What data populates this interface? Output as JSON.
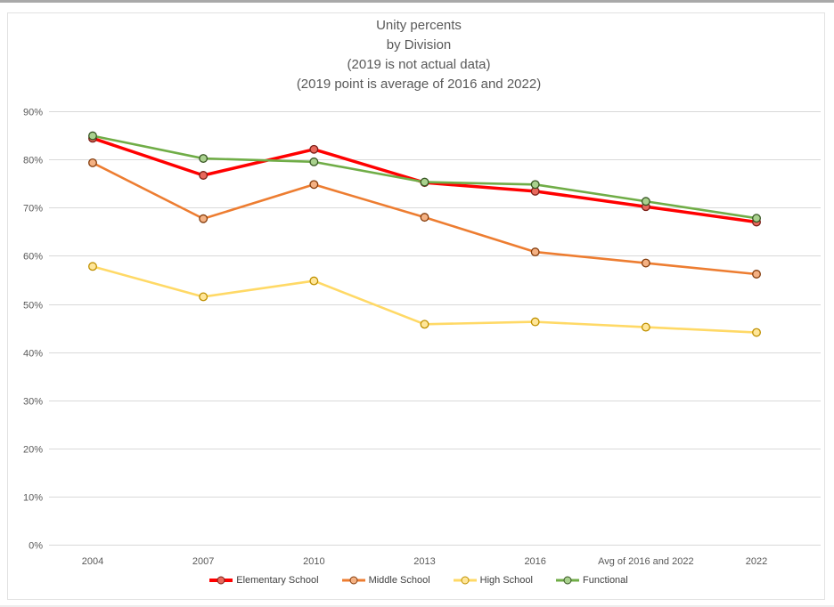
{
  "page": {
    "background": "#ffffff",
    "top_strip_color": "#a9a9a9",
    "frame_border_color": "#e2e2e2"
  },
  "chart_data": {
    "type": "line",
    "title_lines": [
      "Unity percents",
      "by Division",
      "(2019 is not actual data)",
      "(2019 point is average of 2016 and 2022)"
    ],
    "title_color": "#595959",
    "categories": [
      "2004",
      "2007",
      "2010",
      "2013",
      "2016",
      "Avg of 2016 and 2022",
      "2022"
    ],
    "y_axis": {
      "min": 0,
      "max": 90,
      "step": 10,
      "tick_labels": [
        "0%",
        "10%",
        "20%",
        "30%",
        "40%",
        "50%",
        "60%",
        "70%",
        "80%",
        "90%"
      ],
      "label_color": "#595959"
    },
    "grid": true,
    "gridline_color": "#d9d9d9",
    "legend_position": "bottom",
    "series": [
      {
        "name": "Elementary School",
        "color": "#ff0000",
        "marker_fill": "#e8685c",
        "marker_stroke": "#7b2018",
        "line_width": 3.5,
        "values": [
          84.4,
          76.7,
          82.1,
          75.2,
          73.4,
          70.2,
          67.0
        ]
      },
      {
        "name": "Middle School",
        "color": "#ed7d31",
        "marker_fill": "#f4b183",
        "marker_stroke": "#843c0c",
        "line_width": 2.6,
        "values": [
          79.3,
          67.7,
          74.8,
          68.0,
          60.8,
          58.5,
          56.2
        ]
      },
      {
        "name": "High School",
        "color": "#ffd966",
        "marker_fill": "#ffe699",
        "marker_stroke": "#bf9000",
        "line_width": 2.6,
        "values": [
          57.8,
          51.5,
          54.8,
          45.8,
          46.3,
          45.2,
          44.1
        ]
      },
      {
        "name": "Functional",
        "color": "#70ad47",
        "marker_fill": "#a9d18e",
        "marker_stroke": "#375623",
        "line_width": 2.6,
        "values": [
          84.9,
          80.2,
          79.5,
          75.3,
          74.8,
          71.3,
          67.8
        ]
      }
    ]
  }
}
